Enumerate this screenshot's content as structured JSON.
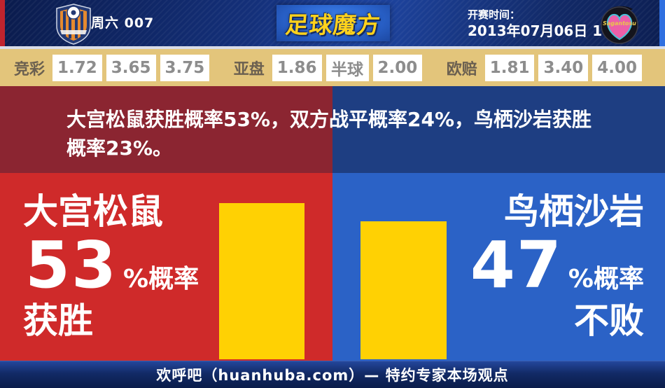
{
  "top_bar": {
    "match_label": "周六 007",
    "brand": "足球魔方",
    "kickoff_label": "开赛时间：",
    "kickoff_time": "2013年07月06日 18:00",
    "home_crest": "omiya-ardija-crest",
    "away_crest": "sagan-tosu-crest",
    "away_crest_text": "Sagantosu"
  },
  "odds_bar": {
    "groups": [
      {
        "label": "竞彩",
        "values": [
          "1.72",
          "3.65",
          "3.75"
        ]
      },
      {
        "label": "亚盘",
        "values": [
          "1.86",
          "半球",
          "2.00"
        ]
      },
      {
        "label": "欧赔",
        "values": [
          "1.81",
          "3.40",
          "4.00"
        ]
      }
    ]
  },
  "summary": {
    "text": "大宫松鼠获胜概率53%，双方战平概率24%，鸟栖沙岩获胜概率23%。"
  },
  "home_panel": {
    "team": "大宫松鼠",
    "probability": "53",
    "suffix": "%概率",
    "outcome": "获胜"
  },
  "away_panel": {
    "team": "鸟栖沙岩",
    "probability": "47",
    "suffix": "%概率",
    "outcome": "不败"
  },
  "footer": {
    "text": "欢呼吧（huanhuba.com）— 特约专家本场观点"
  },
  "colors": {
    "home_red": "#cf2a2a",
    "home_dark_red": "#8b2531",
    "away_blue": "#2b62c6",
    "away_dark_blue": "#1e3e82",
    "bar_yellow": "#ffd103",
    "odds_gold": "#e3c57b",
    "brand_gold": "#ffd21c",
    "top_bar_navy": "#14307a"
  },
  "chart_data": {
    "type": "bar",
    "categories": [
      "大宫松鼠",
      "鸟栖沙岩"
    ],
    "values": [
      53,
      47
    ],
    "unit": "%",
    "value_labels": [
      "53%概率获胜",
      "47%概率不败"
    ],
    "bar_color": "#ffd103",
    "title": "大宫松鼠获胜概率53%，双方战平概率24%，鸟栖沙岩获胜概率23%。",
    "xlabel": "",
    "ylabel": "",
    "ylim": [
      0,
      63
    ],
    "grid": false,
    "legend": false,
    "probabilities": {
      "home_win": 53,
      "draw": 24,
      "away_win": 23
    },
    "pixels_per_percent": 4.2
  }
}
